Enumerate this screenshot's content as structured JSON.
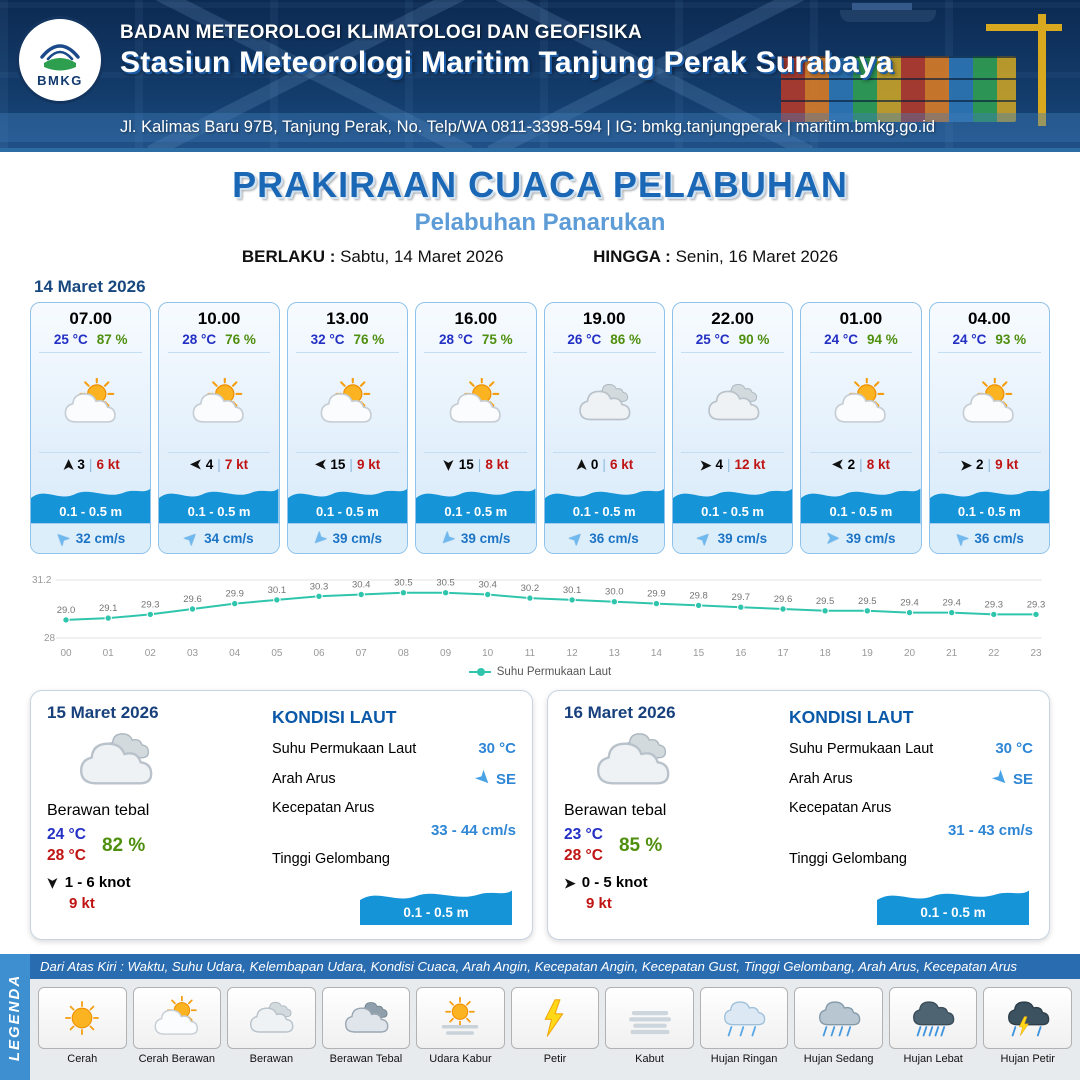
{
  "header": {
    "logo": "BMKG",
    "agency": "BADAN METEOROLOGI KLIMATOLOGI DAN GEOFISIKA",
    "station": "Stasiun Meteorologi Maritim Tanjung Perak Surabaya",
    "address": "Jl. Kalimas Baru 97B, Tanjung Perak, No. Telp/WA 0811-3398-594 | IG: bmkg.tanjungperak | maritim.bmkg.go.id"
  },
  "title": {
    "main": "PRAKIRAAN CUACA PELABUHAN",
    "subtitle": "Pelabuhan Panarukan",
    "berlaku_label": "BERLAKU :",
    "berlaku_value": "Sabtu, 14 Maret 2026",
    "hingga_label": "HINGGA :",
    "hingga_value": "Senin, 16 Maret 2026"
  },
  "hourly": {
    "date": "14 Maret 2026",
    "cards": [
      {
        "time": "07.00",
        "temp": "25 °C",
        "rh": "87 %",
        "icon": "cerah-berawan",
        "wind_dir": "N",
        "wind": "3",
        "gust": "6 kt",
        "wave": "0.1 - 0.5 m",
        "current_dir": "NW",
        "current": "32 cm/s"
      },
      {
        "time": "10.00",
        "temp": "28 °C",
        "rh": "76 %",
        "icon": "cerah-berawan",
        "wind_dir": "W",
        "wind": "4",
        "gust": "7 kt",
        "wave": "0.1 - 0.5 m",
        "current_dir": "NE",
        "current": "34 cm/s"
      },
      {
        "time": "13.00",
        "temp": "32 °C",
        "rh": "76 %",
        "icon": "cerah-berawan",
        "wind_dir": "W",
        "wind": "15",
        "gust": "9 kt",
        "wave": "0.1 - 0.5 m",
        "current_dir": "SW",
        "current": "39 cm/s"
      },
      {
        "time": "16.00",
        "temp": "28 °C",
        "rh": "75 %",
        "icon": "cerah-berawan",
        "wind_dir": "S",
        "wind": "15",
        "gust": "8 kt",
        "wave": "0.1 - 0.5 m",
        "current_dir": "SW",
        "current": "39 cm/s"
      },
      {
        "time": "19.00",
        "temp": "26 °C",
        "rh": "86 %",
        "icon": "berawan",
        "wind_dir": "N",
        "wind": "0",
        "gust": "6 kt",
        "wave": "0.1 - 0.5 m",
        "current_dir": "NE",
        "current": "36 cm/s"
      },
      {
        "time": "22.00",
        "temp": "25 °C",
        "rh": "90 %",
        "icon": "berawan",
        "wind_dir": "E",
        "wind": "4",
        "gust": "12 kt",
        "wave": "0.1 - 0.5 m",
        "current_dir": "NE",
        "current": "39 cm/s"
      },
      {
        "time": "01.00",
        "temp": "24 °C",
        "rh": "94 %",
        "icon": "cerah-berawan",
        "wind_dir": "W",
        "wind": "2",
        "gust": "8 kt",
        "wave": "0.1 - 0.5 m",
        "current_dir": "E",
        "current": "39 cm/s"
      },
      {
        "time": "04.00",
        "temp": "24 °C",
        "rh": "93 %",
        "icon": "cerah-berawan",
        "wind_dir": "E",
        "wind": "2",
        "gust": "9 kt",
        "wave": "0.1 - 0.5 m",
        "current_dir": "NW",
        "current": "36 cm/s"
      }
    ]
  },
  "chart_data": {
    "type": "line",
    "series_name": "Suhu Permukaan Laut",
    "x": [
      "00",
      "01",
      "02",
      "03",
      "04",
      "05",
      "06",
      "07",
      "08",
      "09",
      "10",
      "11",
      "12",
      "13",
      "14",
      "15",
      "16",
      "17",
      "18",
      "19",
      "20",
      "21",
      "22",
      "23"
    ],
    "values": [
      29.0,
      29.1,
      29.3,
      29.6,
      29.9,
      30.1,
      30.3,
      30.4,
      30.5,
      30.5,
      30.4,
      30.2,
      30.1,
      30.0,
      29.9,
      29.8,
      29.7,
      29.6,
      29.5,
      29.5,
      29.4,
      29.4,
      29.3,
      29.3
    ],
    "ylim": [
      28,
      31.2
    ],
    "line_color": "#2fc5ad",
    "legend_position": "bottom",
    "grid": true
  },
  "daily": [
    {
      "date": "15 Maret 2026",
      "icon": "berawan",
      "condition": "Berawan tebal",
      "temp_min": "24 °C",
      "rh": "82 %",
      "temp_max": "28 °C",
      "wind_dir": "S",
      "wind_range": "1 - 6 knot",
      "gust": "9 kt",
      "sea": {
        "heading": "KONDISI LAUT",
        "sst_label": "Suhu Permukaan Laut",
        "sst": "30 °C",
        "dir_label": "Arah Arus",
        "dir": "SE",
        "speed_label": "Kecepatan Arus",
        "speed": "33 - 44 cm/s",
        "wave_label": "Tinggi Gelombang",
        "wave": "0.1 - 0.5 m"
      }
    },
    {
      "date": "16 Maret 2026",
      "icon": "berawan",
      "condition": "Berawan tebal",
      "temp_min": "23 °C",
      "rh": "85 %",
      "temp_max": "28 °C",
      "wind_dir": "E",
      "wind_range": "0 - 5 knot",
      "gust": "9 kt",
      "sea": {
        "heading": "KONDISI LAUT",
        "sst_label": "Suhu Permukaan Laut",
        "sst": "30 °C",
        "dir_label": "Arah Arus",
        "dir": "SE",
        "speed_label": "Kecepatan Arus",
        "speed": "31 - 43 cm/s",
        "wave_label": "Tinggi Gelombang",
        "wave": "0.1 - 0.5 m"
      }
    }
  ],
  "legend": {
    "band": "LEGENDA",
    "note": "Dari Atas Kiri : Waktu, Suhu Udara, Kelembapan Udara, Kondisi Cuaca, Arah Angin, Kecepatan Angin, Kecepatan Gust, Tinggi Gelombang, Arah Arus, Kecepatan Arus",
    "items": [
      {
        "label": "Cerah",
        "icon": "cerah"
      },
      {
        "label": "Cerah Berawan",
        "icon": "cerah-berawan"
      },
      {
        "label": "Berawan",
        "icon": "berawan"
      },
      {
        "label": "Berawan Tebal",
        "icon": "berawan-tebal"
      },
      {
        "label": "Udara Kabur",
        "icon": "udara-kabur"
      },
      {
        "label": "Petir",
        "icon": "petir"
      },
      {
        "label": "Kabut",
        "icon": "kabut"
      },
      {
        "label": "Hujan Ringan",
        "icon": "hujan-ringan"
      },
      {
        "label": "Hujan Sedang",
        "icon": "hujan-sedang"
      },
      {
        "label": "Hujan Lebat",
        "icon": "hujan-lebat"
      },
      {
        "label": "Hujan Petir",
        "icon": "hujan-petir"
      }
    ]
  },
  "colors": {
    "temp": "#2330c3",
    "humidity": "#4f8f0e",
    "gust": "#c01414",
    "wave_fill": "#1694d8",
    "current": "#1c74c4",
    "title": "#1a67b6"
  }
}
